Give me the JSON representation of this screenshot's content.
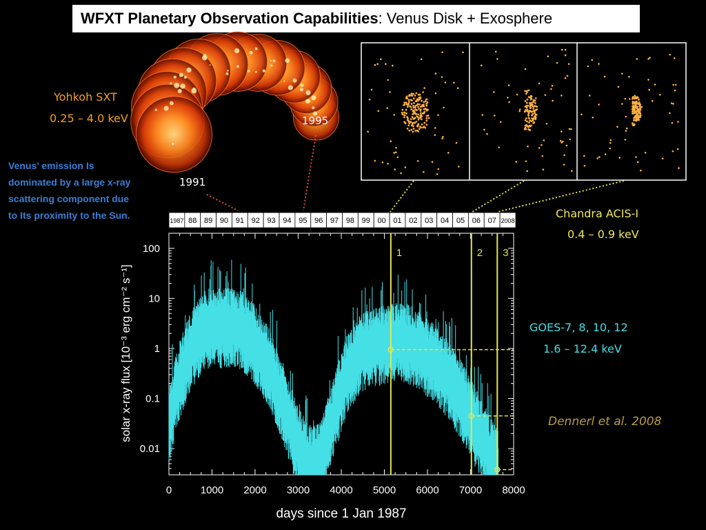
{
  "slide": {
    "title_bold": "WFXT Planetary Observation Capabilities",
    "title_rest": ": Venus Disk + Exosphere",
    "yohkoh_name": "Yohkoh SXT",
    "yohkoh_band": "0.25 – 4.0 keV",
    "venus_note": "Venus’ emission Is dominated by a large x-ray scattering component due to Its proximity to the Sun.",
    "year_1991": "1991",
    "year_1995": "1995",
    "chandra_name": "Chandra ACIS-I",
    "chandra_band": "0.4 – 0.9 keV",
    "goes_name": "GOES-7, 8, 10, 12",
    "goes_band": "1.6 – 12.4 keV",
    "citation": "Dennerl et al. 2008"
  },
  "colors": {
    "flux_line": "#45dfe6",
    "marker_line": "#e6e64a",
    "sun_orange": "#ff5a10",
    "chandra_photon": "#ffb040",
    "connector_red": "#e05030"
  },
  "chart_data": {
    "type": "line",
    "xlabel": "days since 1 Jan 1987",
    "ylabel": "solar x-ray flux  [10⁻³ erg cm⁻² s⁻¹]",
    "xlim": [
      0,
      8000
    ],
    "ylim": [
      0.003,
      200
    ],
    "yscale": "log",
    "x_ticks": [
      "0",
      "1000",
      "2000",
      "3000",
      "4000",
      "5000",
      "6000",
      "7000",
      "8000"
    ],
    "y_ticks": [
      "100",
      "10",
      "1",
      "0.1",
      "0.01"
    ],
    "y_tick_values": [
      100,
      10,
      1,
      0.1,
      0.01
    ],
    "year_labels": [
      "1987",
      "88",
      "89",
      "90",
      "91",
      "92",
      "93",
      "94",
      "95",
      "96",
      "97",
      "98",
      "99",
      "00",
      "01",
      "02",
      "03",
      "04",
      "05",
      "06",
      "07",
      "2008"
    ],
    "series": [
      {
        "x": [
          0,
          200,
          500,
          800,
          1000,
          1200,
          1500,
          1700,
          2000,
          2300,
          2600,
          2900,
          3100,
          3300,
          3500,
          3700,
          3900,
          4100,
          4400,
          4700,
          5000,
          5300,
          5600,
          5900,
          6200,
          6500,
          6800,
          7100,
          7400,
          7600
        ],
        "y": [
          0.03,
          0.2,
          1.0,
          2.5,
          3.0,
          2.8,
          3.0,
          2.5,
          1.3,
          0.5,
          0.12,
          0.02,
          0.008,
          0.005,
          0.006,
          0.02,
          0.08,
          0.3,
          0.8,
          1.2,
          1.3,
          1.5,
          1.3,
          0.9,
          0.5,
          0.25,
          0.1,
          0.03,
          0.01,
          0.005
        ]
      }
    ],
    "markers": [
      {
        "label": "1",
        "x": 5150,
        "y": 0.95
      },
      {
        "label": "2",
        "x": 7020,
        "y": 0.045
      },
      {
        "label": "3",
        "x": 7620,
        "y": 0.0038
      }
    ]
  }
}
